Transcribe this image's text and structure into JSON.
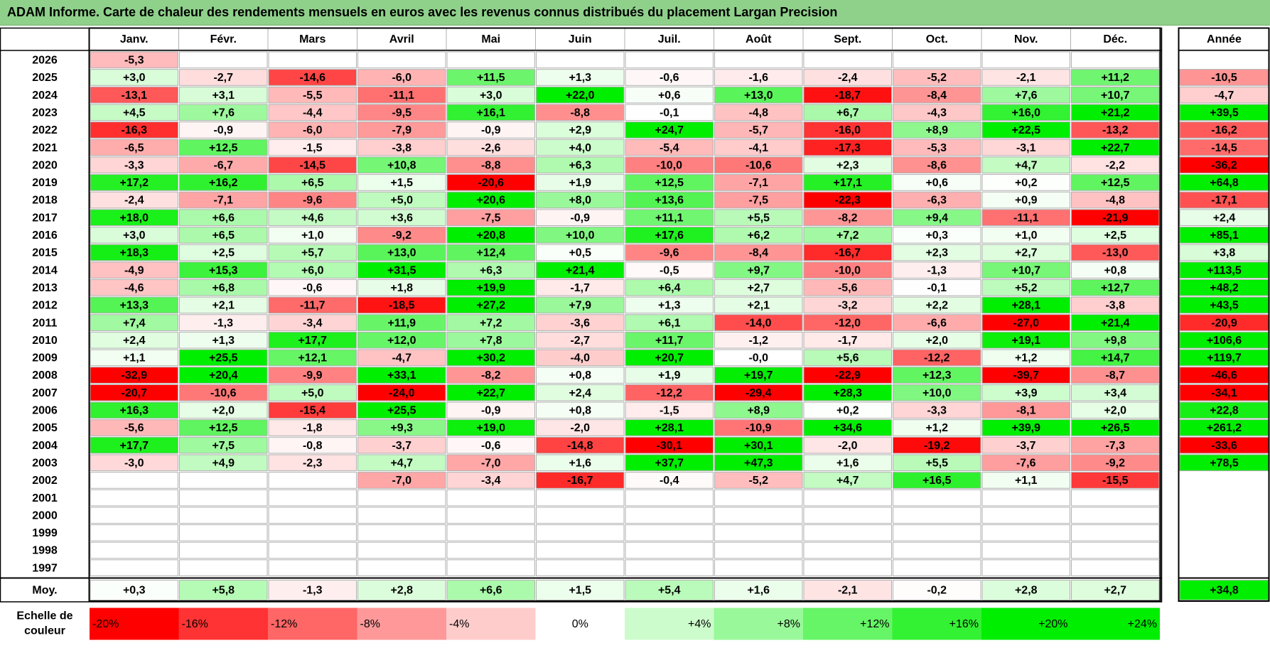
{
  "title": "ADAM Informe. Carte de chaleur des rendements mensuels en euros avec les revenus connus distribués du placement Largan Precision",
  "colors": {
    "title_bg": "#8fd18b",
    "strong_red": "#ff0000",
    "strong_green": "#00ee00",
    "neutral": "#ffffff",
    "grid": "#b0b0b0",
    "frame": "#000000"
  },
  "chart_data": {
    "type": "heatmap",
    "months": [
      "Janv.",
      "Févr.",
      "Mars",
      "Avril",
      "Mai",
      "Juin",
      "Juil.",
      "Août",
      "Sept.",
      "Oct.",
      "Nov.",
      "Déc."
    ],
    "annual_header": "Année",
    "average_label": "Moy.",
    "scale_label": "Echelle de couleur",
    "rows": [
      {
        "year": "2026",
        "months": [
          "-5,3",
          "",
          "",
          "",
          "",
          "",
          "",
          "",
          "",
          "",
          "",
          ""
        ],
        "annual": ""
      },
      {
        "year": "2025",
        "months": [
          "+3,0",
          "-2,7",
          "-14,6",
          "-6,0",
          "+11,5",
          "+1,3",
          "-0,6",
          "-1,6",
          "-2,4",
          "-5,2",
          "-2,1",
          "+11,2"
        ],
        "annual": "-10,5"
      },
      {
        "year": "2024",
        "months": [
          "-13,1",
          "+3,1",
          "-5,5",
          "-11,1",
          "+3,0",
          "+22,0",
          "+0,6",
          "+13,0",
          "-18,7",
          "-8,4",
          "+7,6",
          "+10,7"
        ],
        "annual": "-4,7"
      },
      {
        "year": "2023",
        "months": [
          "+4,5",
          "+7,6",
          "-4,4",
          "-9,5",
          "+16,1",
          "-8,8",
          "-0,1",
          "-4,8",
          "+6,7",
          "-4,3",
          "+16,0",
          "+21,2"
        ],
        "annual": "+39,5"
      },
      {
        "year": "2022",
        "months": [
          "-16,3",
          "-0,9",
          "-6,0",
          "-7,9",
          "-0,9",
          "+2,9",
          "+24,7",
          "-5,7",
          "-16,0",
          "+8,9",
          "+22,5",
          "-13,2"
        ],
        "annual": "-16,2"
      },
      {
        "year": "2021",
        "months": [
          "-6,5",
          "+12,5",
          "-1,5",
          "-3,8",
          "-2,6",
          "+4,0",
          "-5,4",
          "-4,1",
          "-17,3",
          "-5,3",
          "-3,1",
          "+22,7"
        ],
        "annual": "-14,5"
      },
      {
        "year": "2020",
        "months": [
          "-3,3",
          "-6,7",
          "-14,5",
          "+10,8",
          "-8,8",
          "+6,3",
          "-10,0",
          "-10,6",
          "+2,3",
          "-8,6",
          "+4,7",
          "-2,2"
        ],
        "annual": "-36,2"
      },
      {
        "year": "2019",
        "months": [
          "+17,2",
          "+16,2",
          "+6,5",
          "+1,5",
          "-20,6",
          "+1,9",
          "+12,5",
          "-7,1",
          "+17,1",
          "+0,6",
          "+0,2",
          "+12,5"
        ],
        "annual": "+64,8"
      },
      {
        "year": "2018",
        "months": [
          "-2,4",
          "-7,1",
          "-9,6",
          "+5,0",
          "+20,6",
          "+8,0",
          "+13,6",
          "-7,5",
          "-22,3",
          "-6,3",
          "+0,9",
          "-4,8"
        ],
        "annual": "-17,1"
      },
      {
        "year": "2017",
        "months": [
          "+18,0",
          "+6,6",
          "+4,6",
          "+3,6",
          "-7,5",
          "-0,9",
          "+11,1",
          "+5,5",
          "-8,2",
          "+9,4",
          "-11,1",
          "-21,9"
        ],
        "annual": "+2,4"
      },
      {
        "year": "2016",
        "months": [
          "+3,0",
          "+6,5",
          "+1,0",
          "-9,2",
          "+20,8",
          "+10,0",
          "+17,6",
          "+6,2",
          "+7,2",
          "+0,3",
          "+1,0",
          "+2,5"
        ],
        "annual": "+85,1"
      },
      {
        "year": "2015",
        "months": [
          "+18,3",
          "+2,5",
          "+5,7",
          "+13,0",
          "+12,4",
          "+0,5",
          "-9,6",
          "-8,4",
          "-16,7",
          "+2,3",
          "+2,7",
          "-13,0"
        ],
        "annual": "+3,8"
      },
      {
        "year": "2014",
        "months": [
          "-4,9",
          "+15,3",
          "+6,0",
          "+31,5",
          "+6,3",
          "+21,4",
          "-0,5",
          "+9,7",
          "-10,0",
          "-1,3",
          "+10,7",
          "+0,8"
        ],
        "annual": "+113,5"
      },
      {
        "year": "2013",
        "months": [
          "-4,6",
          "+6,8",
          "-0,6",
          "+1,8",
          "+19,9",
          "-1,7",
          "+6,4",
          "+2,7",
          "-5,6",
          "-0,1",
          "+5,2",
          "+12,7"
        ],
        "annual": "+48,2"
      },
      {
        "year": "2012",
        "months": [
          "+13,3",
          "+2,1",
          "-11,7",
          "-18,5",
          "+27,2",
          "+7,9",
          "+1,3",
          "+2,1",
          "-3,2",
          "+2,2",
          "+28,1",
          "-3,8"
        ],
        "annual": "+43,5"
      },
      {
        "year": "2011",
        "months": [
          "+7,4",
          "-1,3",
          "-3,4",
          "+11,9",
          "+7,2",
          "-3,6",
          "+6,1",
          "-14,0",
          "-12,0",
          "-6,6",
          "-27,0",
          "+21,4"
        ],
        "annual": "-20,9"
      },
      {
        "year": "2010",
        "months": [
          "+2,4",
          "+1,3",
          "+17,7",
          "+12,0",
          "+7,8",
          "-2,7",
          "+11,7",
          "-1,2",
          "-1,7",
          "+2,0",
          "+19,1",
          "+9,8"
        ],
        "annual": "+106,6"
      },
      {
        "year": "2009",
        "months": [
          "+1,1",
          "+25,5",
          "+12,1",
          "-4,7",
          "+30,2",
          "-4,0",
          "+20,7",
          "-0,0",
          "+5,6",
          "-12,2",
          "+1,2",
          "+14,7"
        ],
        "annual": "+119,7"
      },
      {
        "year": "2008",
        "months": [
          "-32,9",
          "+20,4",
          "-9,9",
          "+33,1",
          "-8,2",
          "+0,8",
          "+1,9",
          "+19,7",
          "-22,9",
          "+12,3",
          "-39,7",
          "-8,7"
        ],
        "annual": "-46,6"
      },
      {
        "year": "2007",
        "months": [
          "-20,7",
          "-10,6",
          "+5,0",
          "-24,0",
          "+22,7",
          "+2,4",
          "-12,2",
          "-29,4",
          "+28,3",
          "+10,0",
          "+3,9",
          "+3,4"
        ],
        "annual": "-34,1"
      },
      {
        "year": "2006",
        "months": [
          "+16,3",
          "+2,0",
          "-15,4",
          "+25,5",
          "-0,9",
          "+0,8",
          "-1,5",
          "+8,9",
          "+0,2",
          "-3,3",
          "-8,1",
          "+2,0"
        ],
        "annual": "+22,8"
      },
      {
        "year": "2005",
        "months": [
          "-5,6",
          "+12,5",
          "-1,8",
          "+9,3",
          "+19,0",
          "-2,0",
          "+28,1",
          "-10,9",
          "+34,6",
          "+1,2",
          "+39,9",
          "+26,5"
        ],
        "annual": "+261,2"
      },
      {
        "year": "2004",
        "months": [
          "+17,7",
          "+7,5",
          "-0,8",
          "-3,7",
          "-0,6",
          "-14,8",
          "-30,1",
          "+30,1",
          "-2,0",
          "-19,2",
          "-3,7",
          "-7,3"
        ],
        "annual": "-33,6"
      },
      {
        "year": "2003",
        "months": [
          "-3,0",
          "+4,9",
          "-2,3",
          "+4,7",
          "-7,0",
          "+1,6",
          "+37,7",
          "+47,3",
          "+1,6",
          "+5,5",
          "-7,6",
          "-9,2"
        ],
        "annual": "+78,5"
      },
      {
        "year": "2002",
        "months": [
          "",
          "",
          "",
          "-7,0",
          "-3,4",
          "-16,7",
          "-0,4",
          "-5,2",
          "+4,7",
          "+16,5",
          "+1,1",
          "-15,5"
        ],
        "annual": ""
      },
      {
        "year": "2001",
        "months": [
          "",
          "",
          "",
          "",
          "",
          "",
          "",
          "",
          "",
          "",
          "",
          ""
        ],
        "annual": ""
      },
      {
        "year": "2000",
        "months": [
          "",
          "",
          "",
          "",
          "",
          "",
          "",
          "",
          "",
          "",
          "",
          ""
        ],
        "annual": ""
      },
      {
        "year": "1999",
        "months": [
          "",
          "",
          "",
          "",
          "",
          "",
          "",
          "",
          "",
          "",
          "",
          ""
        ],
        "annual": ""
      },
      {
        "year": "1998",
        "months": [
          "",
          "",
          "",
          "",
          "",
          "",
          "",
          "",
          "",
          "",
          "",
          ""
        ],
        "annual": ""
      },
      {
        "year": "1997",
        "months": [
          "",
          "",
          "",
          "",
          "",
          "",
          "",
          "",
          "",
          "",
          "",
          ""
        ],
        "annual": ""
      }
    ],
    "average": {
      "months": [
        "+0,3",
        "+5,8",
        "-1,3",
        "+2,8",
        "+6,6",
        "+1,5",
        "+5,4",
        "+1,6",
        "-2,1",
        "-0,2",
        "+2,8",
        "+2,7"
      ],
      "annual": "+34,8"
    },
    "scale": [
      {
        "label": "-20%",
        "value": -20
      },
      {
        "label": "-16%",
        "value": -16
      },
      {
        "label": "-12%",
        "value": -12
      },
      {
        "label": "-8%",
        "value": -8
      },
      {
        "label": "-4%",
        "value": -4
      },
      {
        "label": "0%",
        "value": 0
      },
      {
        "label": "+4%",
        "value": 4
      },
      {
        "label": "+8%",
        "value": 8
      },
      {
        "label": "+12%",
        "value": 12
      },
      {
        "label": "+16%",
        "value": 16
      },
      {
        "label": "+20%",
        "value": 20
      },
      {
        "label": "+24%",
        "value": 24
      }
    ]
  }
}
